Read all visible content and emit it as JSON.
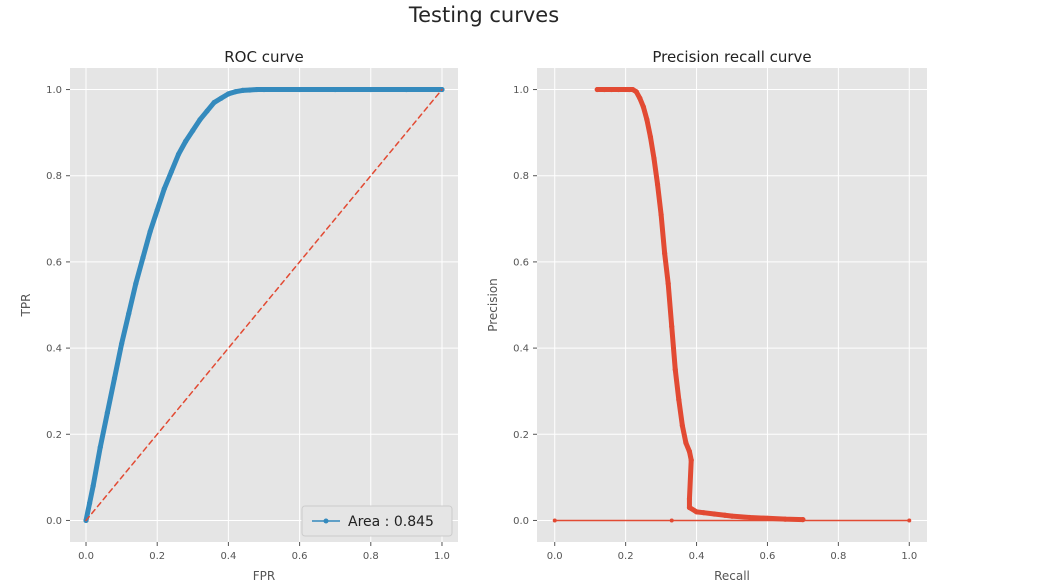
{
  "figure": {
    "title": "Testing curves"
  },
  "chart_data": [
    {
      "type": "line",
      "title": "ROC curve",
      "xlabel": "FPR",
      "ylabel": "TPR",
      "xlim": [
        -0.045,
        1.045
      ],
      "ylim": [
        -0.05,
        1.05
      ],
      "xticks": [
        "0.0",
        "0.2",
        "0.4",
        "0.6",
        "0.8",
        "1.0"
      ],
      "yticks": [
        "0.0",
        "0.2",
        "0.4",
        "0.6",
        "0.8",
        "1.0"
      ],
      "grid": true,
      "legend": {
        "placement": "lower-right",
        "label": "Area : 0.845"
      },
      "series": [
        {
          "name": "Area : 0.845",
          "color": "#348ABD",
          "marker": "point",
          "x": [
            0.0,
            0.01,
            0.02,
            0.04,
            0.06,
            0.08,
            0.1,
            0.12,
            0.14,
            0.16,
            0.18,
            0.2,
            0.22,
            0.24,
            0.26,
            0.28,
            0.3,
            0.32,
            0.34,
            0.36,
            0.38,
            0.4,
            0.42,
            0.44,
            0.46,
            0.48,
            0.5,
            0.6,
            0.7,
            0.8,
            0.9,
            1.0
          ],
          "y": [
            0.0,
            0.04,
            0.08,
            0.17,
            0.25,
            0.33,
            0.41,
            0.48,
            0.55,
            0.61,
            0.67,
            0.72,
            0.77,
            0.81,
            0.85,
            0.88,
            0.905,
            0.93,
            0.95,
            0.97,
            0.98,
            0.99,
            0.995,
            0.998,
            0.999,
            1.0,
            1.0,
            1.0,
            1.0,
            1.0,
            1.0,
            1.0
          ]
        },
        {
          "color": "#E24A33",
          "dashed": true,
          "x": [
            0.0,
            1.0
          ],
          "y": [
            0.0,
            1.0
          ]
        }
      ]
    },
    {
      "type": "line",
      "title": "Precision recall curve",
      "xlabel": "Recall",
      "ylabel": "Precision",
      "xlim": [
        -0.05,
        1.05
      ],
      "ylim": [
        -0.05,
        1.05
      ],
      "xticks": [
        "0.0",
        "0.2",
        "0.4",
        "0.6",
        "0.8",
        "1.0"
      ],
      "yticks": [
        "0.0",
        "0.2",
        "0.4",
        "0.6",
        "0.8",
        "1.0"
      ],
      "grid": true,
      "series": [
        {
          "color": "#E24A33",
          "marker": "point",
          "x": [
            0.12,
            0.14,
            0.16,
            0.18,
            0.2,
            0.21,
            0.22,
            0.23,
            0.24,
            0.25,
            0.26,
            0.27,
            0.28,
            0.29,
            0.3,
            0.31,
            0.32,
            0.33,
            0.34,
            0.35,
            0.36,
            0.37,
            0.38,
            0.385,
            0.38,
            0.38,
            0.4,
            0.42,
            0.45,
            0.48,
            0.5,
            0.55,
            0.6,
            0.65,
            0.7
          ],
          "y": [
            1.0,
            1.0,
            1.0,
            1.0,
            1.0,
            1.0,
            1.0,
            0.995,
            0.98,
            0.96,
            0.93,
            0.89,
            0.84,
            0.78,
            0.71,
            0.62,
            0.55,
            0.45,
            0.35,
            0.28,
            0.22,
            0.18,
            0.16,
            0.14,
            0.05,
            0.03,
            0.02,
            0.018,
            0.015,
            0.012,
            0.01,
            0.007,
            0.005,
            0.003,
            0.002
          ]
        },
        {
          "color": "#E24A33",
          "marker": "point",
          "x": [
            0.0,
            0.33,
            1.0
          ],
          "y": [
            0.0,
            0.0,
            0.0
          ]
        }
      ]
    }
  ]
}
